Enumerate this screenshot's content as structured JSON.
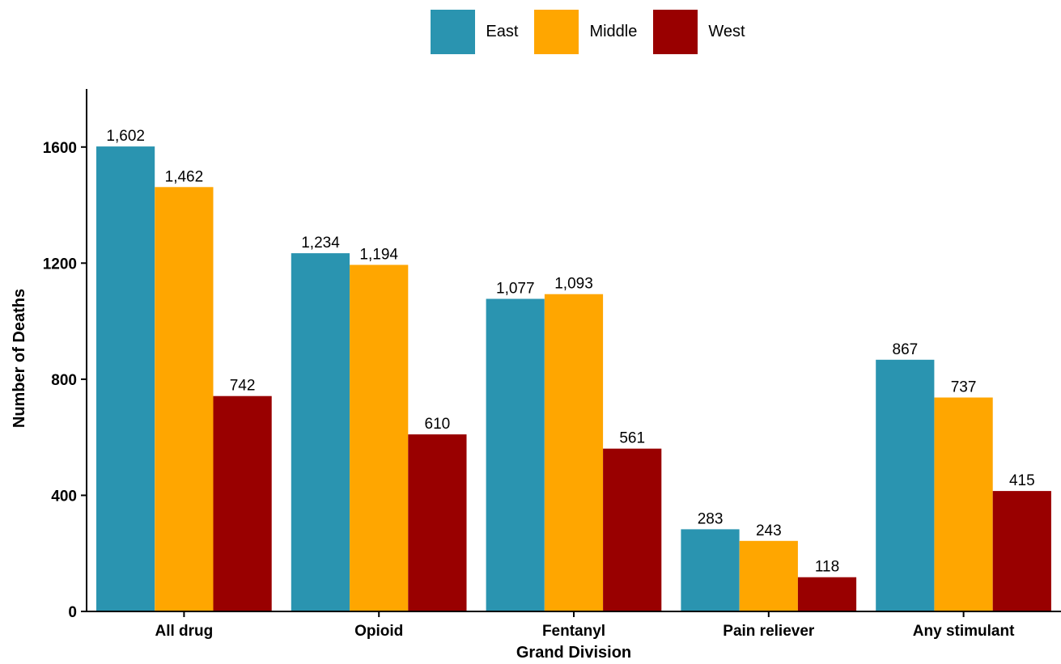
{
  "chart_data": {
    "type": "bar",
    "title": "",
    "xlabel": "Grand Division",
    "ylabel": "Number of Deaths",
    "ylim": [
      0,
      1800
    ],
    "yticks": [
      0,
      400,
      800,
      1200,
      1600
    ],
    "grid": false,
    "legend_position": "top",
    "categories": [
      "All drug",
      "Opioid",
      "Fentanyl",
      "Pain reliever",
      "Any stimulant"
    ],
    "series": [
      {
        "name": "East",
        "color": "#2A94B0",
        "values": [
          1602,
          1234,
          1077,
          283,
          867
        ],
        "labels": [
          "1,602",
          "1,234",
          "1,077",
          "283",
          "867"
        ]
      },
      {
        "name": "Middle",
        "color": "#FFA600",
        "values": [
          1462,
          1194,
          1093,
          243,
          737
        ],
        "labels": [
          "1,462",
          "1,194",
          "1,093",
          "243",
          "737"
        ]
      },
      {
        "name": "West",
        "color": "#990000",
        "values": [
          742,
          610,
          561,
          118,
          415
        ],
        "labels": [
          "742",
          "610",
          "561",
          "118",
          "415"
        ]
      }
    ]
  }
}
